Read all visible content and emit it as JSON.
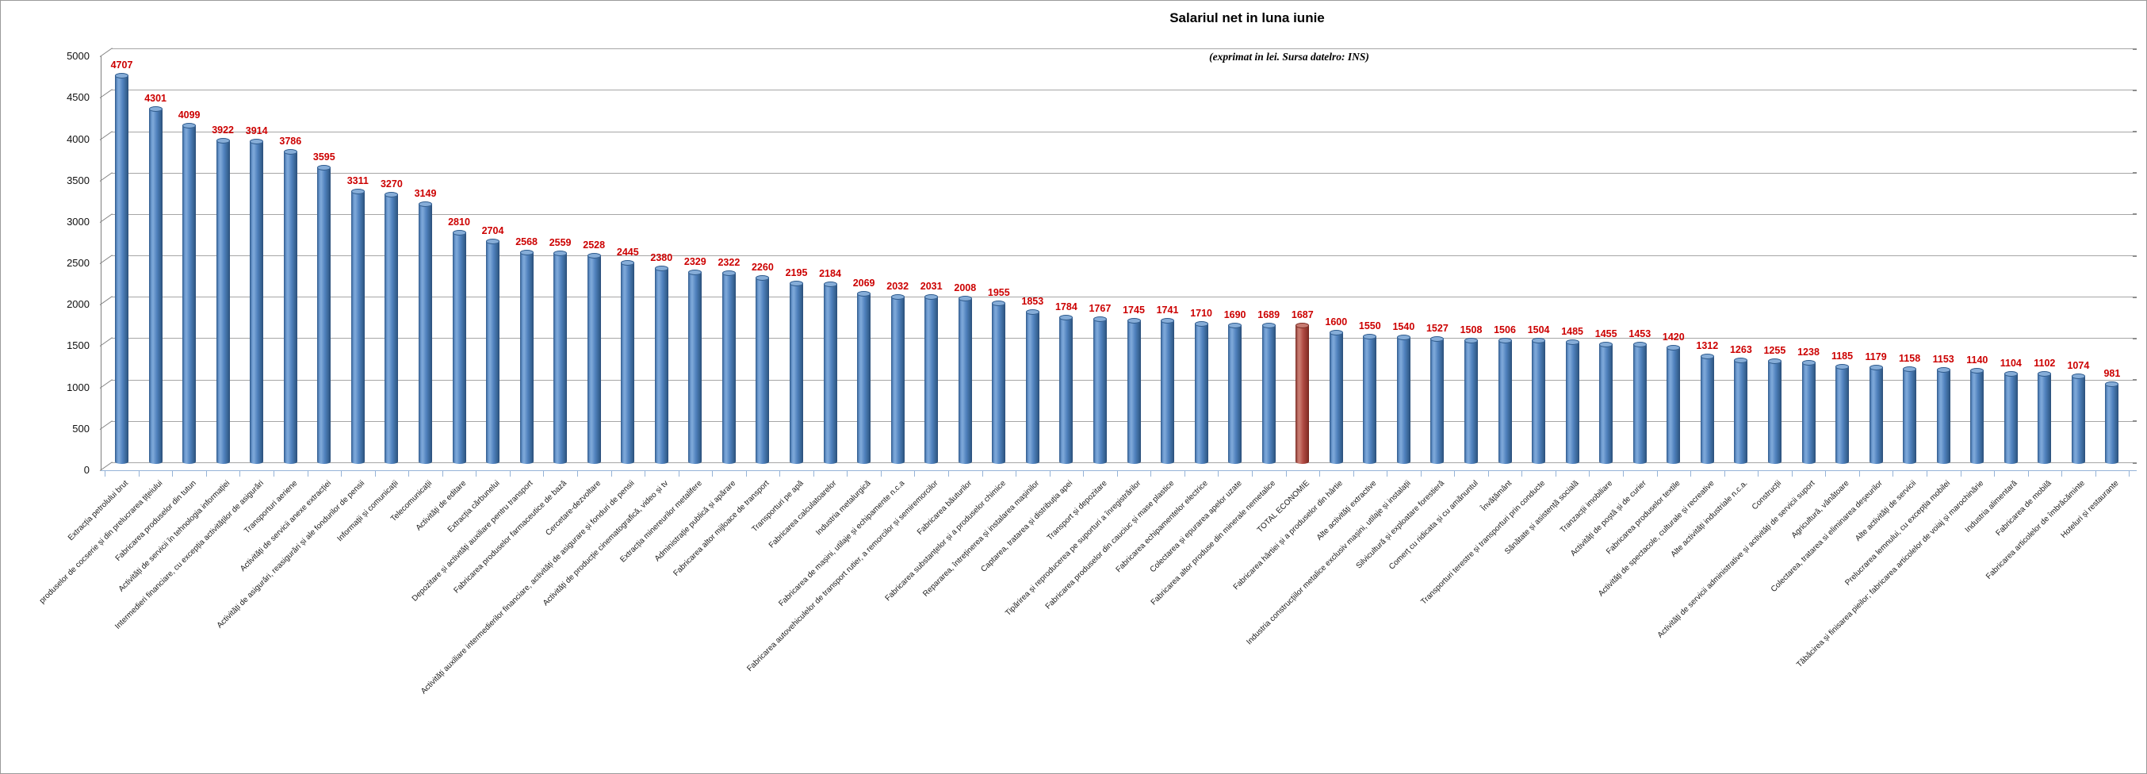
{
  "chart_data": {
    "type": "bar",
    "title": "Salariul net in luna iunie",
    "subtitle": "(exprimat in lei. Sursa datelro: INS)",
    "ylim": [
      0,
      5000
    ],
    "ytick_step": 500,
    "grid": true,
    "legend": "none",
    "style": "3d-cylinder",
    "highlight_index": 35,
    "colors": {
      "bar_blue": "#4f81bd",
      "bar_red": "#b04a42",
      "value_label": "#cc0000",
      "gridline": "#a6a6a6",
      "axis": "#808080",
      "category_axis": "#95b3d7"
    },
    "categories": [
      "Extracția petrolului brut",
      "produselor de cocserie și din prelucrarea țițeiului",
      "Fabricarea produselor din tutun",
      "Activități de servicii în tehnologia informației",
      "Intermedieri financiare, cu excepția activităților de asigurări",
      "Transporturi aeriene",
      "Activități de servicii anexe extracției",
      "Activități de asigurări, reasigurări și ale fondurilor de pensii",
      "Informații și comunicații",
      "Telecomunicații",
      "Activități de editare",
      "Extracția cărbunelui",
      "Depozitare și activități auxiliare pentru transport",
      "Fabricarea produselor farmaceutice de bază",
      "Cercetare-dezvoltare",
      "Activități auxiliare intermedierilor financiare, activități de asigurare și fonduri de pensii",
      "Activități de producție cinematografică, video și tv",
      "Extracția minereurilor metalifere",
      "Administrație publică și apărare",
      "Fabricarea altor mijloace de transport",
      "Transporturi pe apă",
      "Fabricarea calculatoarelor",
      "Industria metalurgică",
      "Fabricarea de mașini, utilaje și echipamente n.c.a",
      "Fabricarea autovehiculelor de transport rutier, a remorcilor și semiremorcilor",
      "Fabricarea băuturilor",
      "Fabricarea substanțelor și a produselor chimice",
      "Repararea, întreținerea și instalarea mașinilor",
      "Captarea, tratarea și distribuția apei",
      "Transport și depozitare",
      "Tipărirea și reproducerea pe suporturi a înregistrărilor",
      "Fabricarea produselor din cauciuc și mase plastice",
      "Fabricarea echipamentelor electrice",
      "Colectarea și epurarea apelor uzate",
      "Fabricarea altor produse din minerale nemetalice",
      "TOTAL ECONOMIE",
      "Fabricarea hârtiei și a produselor din hârtie",
      "Alte activități extractive",
      "Industria construcțiilor metalice exclusiv mașini, utilaje și instalații",
      "Silvicultură și exploatare forestieră",
      "Comerț cu ridicata și cu amănuntul",
      "Învățământ",
      "Transporturi terestre și transporturi prin conducte",
      "Sănătate și asistență socială",
      "Tranzacții imobiliare",
      "Activități de poștă și de curier",
      "Fabricarea produselor textile",
      "Activități de spectacole, culturale și recreative",
      "Alte activități industriale n.c.a.",
      "Construcții",
      "Activități de servicii administrative și activități de servicii suport",
      "Agricultură, vânătoare",
      "Colectarea, tratarea si eliminarea deșeurilor",
      "Alte activități de servicii",
      "Prelucrarea lemnului, cu excepția mobilei",
      "Tăbăcirea și finisarea pieilor; fabricarea articolelor de voiaj și marochinărie",
      "Industria alimentară",
      "Fabricarea de mobilă",
      "Fabricarea articolelor de îmbrăcăminte",
      "Hoteluri și restaurante"
    ],
    "values": [
      4707,
      4301,
      4099,
      3922,
      3914,
      3786,
      3595,
      3311,
      3270,
      3149,
      2810,
      2704,
      2568,
      2559,
      2528,
      2445,
      2380,
      2329,
      2322,
      2260,
      2195,
      2184,
      2069,
      2032,
      2031,
      2008,
      1955,
      1853,
      1784,
      1767,
      1745,
      1741,
      1710,
      1690,
      1689,
      1687,
      1600,
      1550,
      1540,
      1527,
      1508,
      1506,
      1504,
      1485,
      1455,
      1453,
      1420,
      1312,
      1263,
      1255,
      1238,
      1185,
      1179,
      1158,
      1153,
      1140,
      1104,
      1102,
      1074,
      981
    ]
  }
}
